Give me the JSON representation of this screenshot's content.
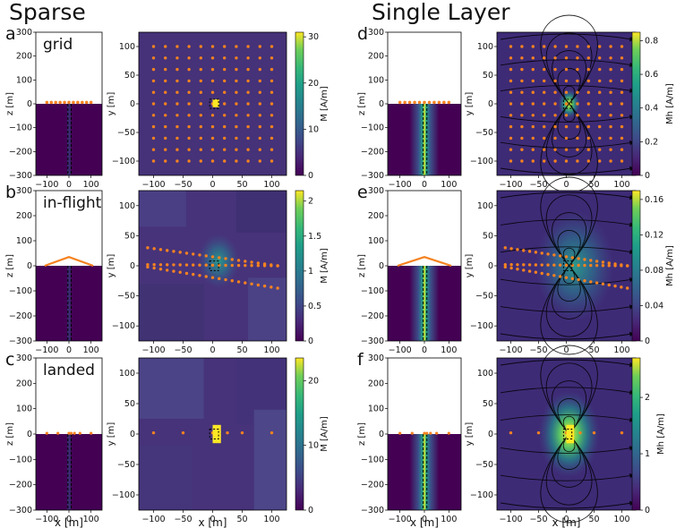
{
  "headers": {
    "left": "Sparse",
    "right": "Single Layer"
  },
  "colors": {
    "survey": "#f58220",
    "viridis_low": "#440154",
    "viridis_high": "#fde725",
    "wire": "#000000"
  },
  "rows": [
    {
      "side_label": "a",
      "survey_name": "grid"
    },
    {
      "side_label": "b",
      "survey_name": "in-flight"
    },
    {
      "side_label": "c",
      "survey_name": "landed"
    },
    {
      "side_label": "d",
      "survey_name": ""
    },
    {
      "side_label": "e",
      "survey_name": ""
    },
    {
      "side_label": "f",
      "survey_name": ""
    }
  ],
  "axis_labels": {
    "x": "x [m]",
    "y": "y [m]",
    "z": "z [m]"
  },
  "chart_data": [
    {
      "panel": "a",
      "type": "heatmap",
      "view": "cross-section + plan",
      "survey": "grid",
      "section_xlim": [
        -150,
        150
      ],
      "section_zlim": [
        -300,
        300
      ],
      "section_xticks": [
        -100,
        0,
        100
      ],
      "section_zticks": [
        300,
        200,
        100,
        0,
        -100,
        -200,
        -300
      ],
      "plan_xlim": [
        -125,
        125
      ],
      "plan_ylim": [
        -125,
        125
      ],
      "plan_xticks": [
        -100,
        -50,
        0,
        50,
        100
      ],
      "plan_yticks": [
        100,
        50,
        0,
        -50,
        -100
      ],
      "colorbar": {
        "label": "M [A/m]",
        "ticks": [
          0,
          10,
          20,
          30
        ],
        "range": [
          0,
          31
        ]
      }
    },
    {
      "panel": "b",
      "type": "heatmap",
      "view": "cross-section + plan",
      "survey": "in-flight",
      "plan_xticks": [
        -100,
        -50,
        0,
        50,
        100
      ],
      "plan_yticks": [
        100,
        50,
        0,
        -50,
        -100
      ],
      "colorbar": {
        "label": "M [A/m]",
        "ticks": [
          0,
          0.5,
          1,
          1.5,
          2
        ],
        "range": [
          0,
          2.15
        ]
      }
    },
    {
      "panel": "c",
      "type": "heatmap",
      "view": "cross-section + plan",
      "survey": "landed",
      "plan_xticks": [
        -100,
        -50,
        0,
        50,
        100
      ],
      "plan_yticks": [
        100,
        50,
        0,
        -50,
        -100
      ],
      "colorbar": {
        "label": "M [A/m]",
        "ticks": [
          0,
          10,
          20
        ],
        "range": [
          0,
          23.5
        ]
      }
    },
    {
      "panel": "d",
      "type": "heatmap",
      "view": "cross-section + plan with streamlines",
      "survey": "grid",
      "plan_xticks": [
        -100,
        -50,
        0,
        50,
        100
      ],
      "plan_yticks": [
        100,
        50,
        0,
        -50,
        -100
      ],
      "colorbar": {
        "label": "Mh [A/m]",
        "ticks": [
          0,
          0.2,
          0.4,
          0.6,
          0.8
        ],
        "range": [
          0,
          0.85
        ]
      }
    },
    {
      "panel": "e",
      "type": "heatmap",
      "view": "cross-section + plan with streamlines",
      "survey": "in-flight",
      "plan_xticks": [
        -100,
        -50,
        0,
        50,
        100
      ],
      "plan_yticks": [
        100,
        50,
        0,
        -50,
        -100
      ],
      "colorbar": {
        "label": "Mh [A/m]",
        "ticks": [
          0,
          0.04,
          0.08,
          0.12,
          0.16
        ],
        "range": [
          0,
          0.17
        ]
      }
    },
    {
      "panel": "f",
      "type": "heatmap",
      "view": "cross-section + plan with streamlines",
      "survey": "landed",
      "plan_xticks": [
        -100,
        -50,
        0,
        50,
        100
      ],
      "plan_yticks": [
        100,
        50,
        0,
        -50,
        -100
      ],
      "colorbar": {
        "label": "Mh [A/m]",
        "ticks": [
          0,
          1,
          2
        ],
        "range": [
          0,
          2.7
        ]
      }
    }
  ]
}
